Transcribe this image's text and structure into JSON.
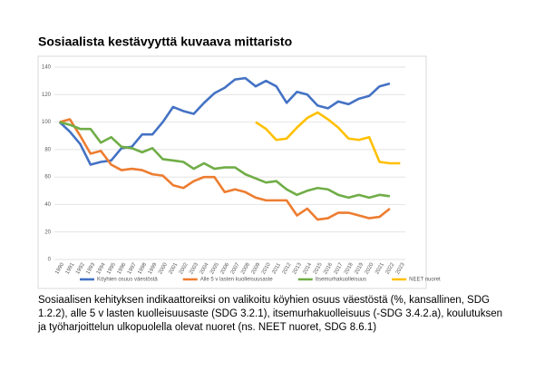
{
  "chart_data": {
    "type": "line",
    "title": "Sosiaalista kestävyyttä kuvaava mittaristo",
    "categories": [
      "1990",
      "1991",
      "1992",
      "1993",
      "1994",
      "1995",
      "1996",
      "1997",
      "1998",
      "1999",
      "2000",
      "2001",
      "2002",
      "2003",
      "2004",
      "2005",
      "2006",
      "2007",
      "2008",
      "2009",
      "2010",
      "2011",
      "2012",
      "2013",
      "2014",
      "2015",
      "2016",
      "2017",
      "2018",
      "2019",
      "2020",
      "2021",
      "2022",
      "2023"
    ],
    "series": [
      {
        "name": "Köyhien osuus väestöstä",
        "color": "#4472c4",
        "values": [
          100,
          93,
          84,
          69,
          71,
          72,
          81,
          82,
          91,
          91,
          100,
          111,
          108,
          106,
          114,
          121,
          125,
          131,
          132,
          126,
          130,
          126,
          114,
          122,
          120,
          112,
          110,
          115,
          113,
          117,
          119,
          126,
          128,
          null
        ]
      },
      {
        "name": "Alle 5 v lasten kuolleisuusaste",
        "color": "#ed7d31",
        "values": [
          100,
          102,
          90,
          77,
          79,
          69,
          65,
          66,
          65,
          62,
          61,
          54,
          52,
          57,
          60,
          60,
          49,
          51,
          49,
          45,
          43,
          43,
          43,
          32,
          37,
          29,
          30,
          34,
          34,
          32,
          30,
          31,
          37,
          null
        ]
      },
      {
        "name": "Itsemurhakuolleisuus",
        "color": "#70ad47",
        "values": [
          100,
          98,
          95,
          95,
          85,
          89,
          82,
          81,
          78,
          81,
          73,
          72,
          71,
          66,
          70,
          66,
          67,
          67,
          62,
          59,
          56,
          57,
          51,
          47,
          50,
          52,
          51,
          47,
          45,
          47,
          45,
          47,
          46,
          null
        ]
      },
      {
        "name": "NEET nuoret",
        "color": "#ffc000",
        "values": [
          null,
          null,
          null,
          null,
          null,
          null,
          null,
          null,
          null,
          null,
          null,
          null,
          null,
          null,
          null,
          null,
          null,
          null,
          null,
          100,
          95,
          87,
          88,
          96,
          103,
          107,
          102,
          96,
          88,
          87,
          89,
          71,
          70,
          70
        ]
      }
    ],
    "ylim": [
      0,
      140
    ],
    "yticks": [
      0,
      20,
      40,
      60,
      80,
      100,
      120,
      140
    ],
    "grid": true,
    "caption": "Sosiaalisen kehityksen indikaattoreiksi on valikoitu köyhien osuus väestöstä (%, kansallinen, SDG 1.2.2), alle 5 v lasten kuolleisuusaste (SDG 3.2.1), itsemurhakuolleisuus (-SDG 3.4.2.a), koulutuksen ja työharjoittelun ulkopuolella olevat nuoret (ns. NEET nuoret, SDG 8.6.1)"
  }
}
